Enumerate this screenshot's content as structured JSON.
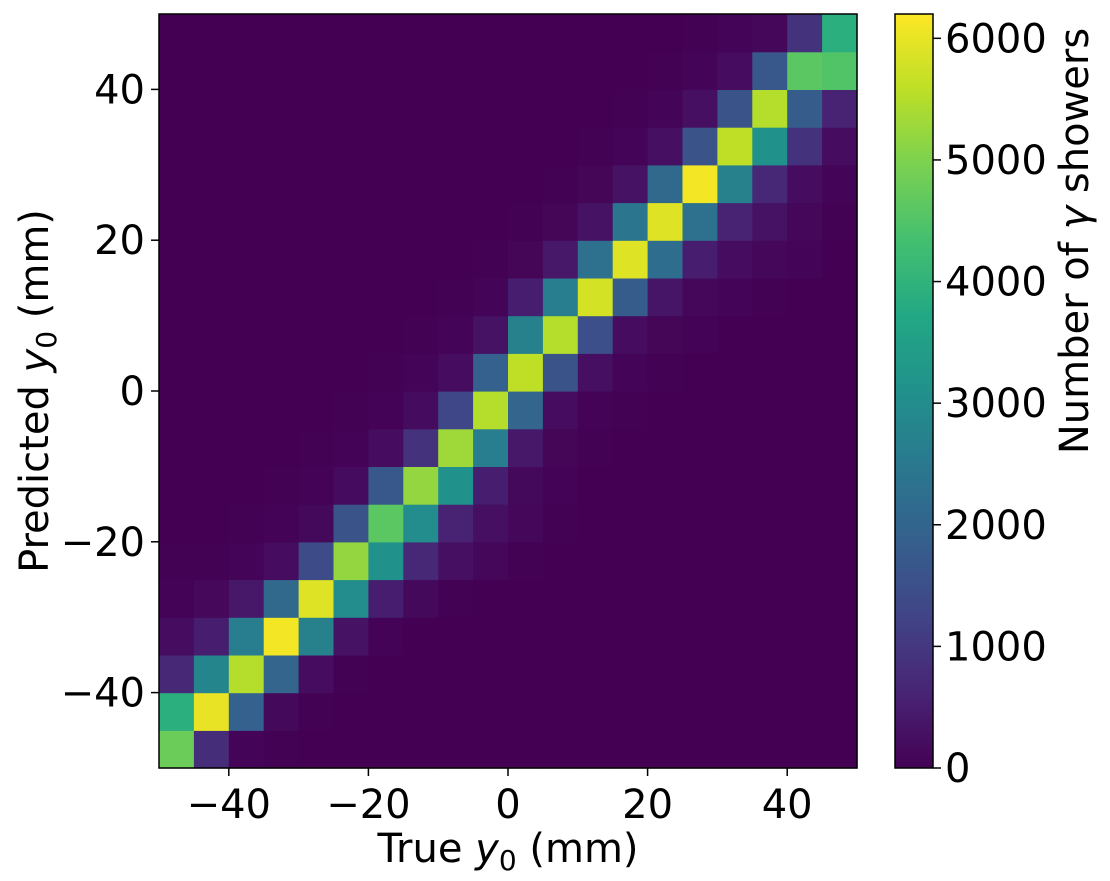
{
  "chart_data": {
    "type": "heatmap",
    "xlabel_prefix": "True ",
    "xlabel_var": "y",
    "xlabel_sub": "0",
    "xlabel_suffix": " (mm)",
    "ylabel_prefix": "Predicted ",
    "ylabel_var": "y",
    "ylabel_sub": "0",
    "ylabel_suffix": " (mm)",
    "colorbar_label_prefix": "Number of ",
    "colorbar_label_var": "γ",
    "colorbar_label_suffix": " showers",
    "xlim": [
      -50,
      50
    ],
    "ylim": [
      -50,
      50
    ],
    "bins": 20,
    "bin_width": 5,
    "x_ticks": [
      -40,
      -20,
      0,
      20,
      40
    ],
    "x_tick_labels": [
      "−40",
      "−20",
      "0",
      "20",
      "40"
    ],
    "y_ticks": [
      -40,
      -20,
      0,
      20,
      40
    ],
    "y_tick_labels": [
      "−40",
      "−20",
      "0",
      "20",
      "40"
    ],
    "colorbar_range": [
      0,
      6200
    ],
    "colorbar_ticks": [
      0,
      1000,
      2000,
      3000,
      4000,
      5000,
      6000
    ],
    "colorbar_tick_labels": [
      "0",
      "1000",
      "2000",
      "3000",
      "4000",
      "5000",
      "6000"
    ],
    "colormap": "viridis",
    "grid": false,
    "counts": [
      [
        4800,
        800,
        50,
        10,
        0,
        0,
        0,
        0,
        0,
        0,
        0,
        0,
        0,
        0,
        0,
        0,
        0,
        0,
        0,
        0
      ],
      [
        3900,
        6000,
        1900,
        150,
        20,
        0,
        0,
        0,
        0,
        0,
        0,
        0,
        0,
        0,
        0,
        0,
        0,
        0,
        0,
        0
      ],
      [
        700,
        2800,
        5500,
        2000,
        200,
        20,
        0,
        0,
        0,
        0,
        0,
        0,
        0,
        0,
        0,
        0,
        0,
        0,
        0,
        0
      ],
      [
        200,
        500,
        2600,
        6100,
        2700,
        300,
        40,
        0,
        0,
        0,
        0,
        0,
        0,
        0,
        0,
        0,
        0,
        0,
        0,
        0
      ],
      [
        30,
        120,
        400,
        2100,
        5900,
        3000,
        500,
        150,
        20,
        0,
        0,
        0,
        0,
        0,
        0,
        0,
        0,
        0,
        0,
        0
      ],
      [
        10,
        20,
        60,
        200,
        1400,
        5200,
        3100,
        700,
        250,
        100,
        20,
        0,
        0,
        0,
        0,
        0,
        0,
        0,
        0,
        0
      ],
      [
        0,
        0,
        10,
        40,
        150,
        1600,
        4600,
        3000,
        600,
        250,
        100,
        10,
        0,
        0,
        0,
        0,
        0,
        0,
        0,
        0
      ],
      [
        0,
        0,
        0,
        10,
        30,
        180,
        1700,
        5200,
        3100,
        500,
        150,
        30,
        0,
        0,
        0,
        0,
        0,
        0,
        0,
        0
      ],
      [
        0,
        0,
        0,
        0,
        10,
        30,
        200,
        900,
        5300,
        2600,
        400,
        80,
        20,
        0,
        0,
        0,
        0,
        0,
        0,
        0
      ],
      [
        0,
        0,
        0,
        0,
        0,
        10,
        40,
        180,
        1300,
        5500,
        2000,
        200,
        40,
        10,
        0,
        0,
        0,
        0,
        0,
        0
      ],
      [
        0,
        0,
        0,
        0,
        0,
        0,
        10,
        50,
        200,
        1900,
        5600,
        1600,
        250,
        50,
        20,
        0,
        0,
        0,
        0,
        0
      ],
      [
        0,
        0,
        0,
        0,
        0,
        0,
        0,
        10,
        50,
        300,
        2700,
        5500,
        1500,
        200,
        80,
        30,
        0,
        0,
        0,
        0
      ],
      [
        0,
        0,
        0,
        0,
        0,
        0,
        0,
        0,
        10,
        60,
        500,
        2600,
        5800,
        1800,
        350,
        100,
        50,
        20,
        0,
        0
      ],
      [
        0,
        0,
        0,
        0,
        0,
        0,
        0,
        0,
        0,
        10,
        80,
        400,
        2300,
        5900,
        2200,
        500,
        200,
        100,
        50,
        0
      ],
      [
        0,
        0,
        0,
        0,
        0,
        0,
        0,
        0,
        0,
        0,
        10,
        80,
        300,
        2400,
        5900,
        2300,
        600,
        300,
        100,
        20
      ],
      [
        0,
        0,
        0,
        0,
        0,
        0,
        0,
        0,
        0,
        0,
        0,
        10,
        80,
        300,
        2100,
        6100,
        2700,
        700,
        200,
        50
      ],
      [
        0,
        0,
        0,
        0,
        0,
        0,
        0,
        0,
        0,
        0,
        0,
        0,
        10,
        50,
        250,
        1600,
        5600,
        3100,
        900,
        200
      ],
      [
        0,
        0,
        0,
        0,
        0,
        0,
        0,
        0,
        0,
        0,
        0,
        0,
        0,
        10,
        50,
        250,
        1600,
        5500,
        1800,
        600
      ],
      [
        0,
        0,
        0,
        0,
        0,
        0,
        0,
        0,
        0,
        0,
        0,
        0,
        0,
        0,
        10,
        50,
        200,
        1700,
        4600,
        4500
      ],
      [
        0,
        0,
        0,
        0,
        0,
        0,
        0,
        0,
        0,
        0,
        0,
        0,
        0,
        0,
        0,
        10,
        50,
        100,
        900,
        3900
      ]
    ]
  }
}
